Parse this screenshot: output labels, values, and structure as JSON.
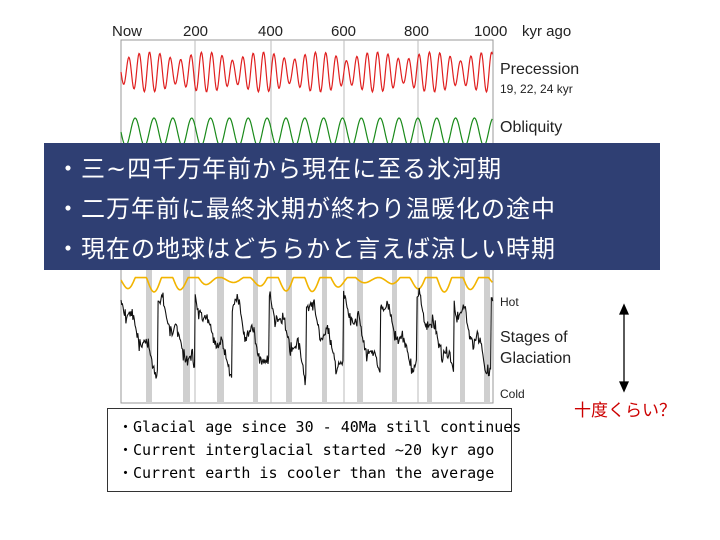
{
  "top_axis": {
    "labels": [
      "Now",
      "200",
      "400",
      "600",
      "800",
      "1000"
    ],
    "unit": "kyr ago"
  },
  "legend": {
    "precession": {
      "title": "Precession",
      "subtitle": "19, 22, 24 kyr",
      "color": "#e02020"
    },
    "obliquity": {
      "title": "Obliquity",
      "color": "#1a8a1a"
    },
    "eccentricity": {
      "color": "#f2b400"
    },
    "glaciation": {
      "hot": "Hot",
      "title_line1": "Stages of",
      "title_line2": "Glaciation",
      "cold": "Cold",
      "color": "#111111"
    }
  },
  "japanese_notes": [
    "・三~四千万年前から現在に至る氷河期",
    "・二万年前に最終氷期が終わり温暖化の途中",
    "・現在の地球はどちらかと言えば涼しい時期"
  ],
  "english_notes": [
    "・Glacial age since 30 - 40Ma still continues",
    "・Current interglacial started ~20 kyr ago",
    "・Current earth is cooler than the average"
  ],
  "temperature_note": "十度くらい？",
  "colors": {
    "box_fill": "#2f3f73",
    "accent_red": "#cc0000"
  }
}
